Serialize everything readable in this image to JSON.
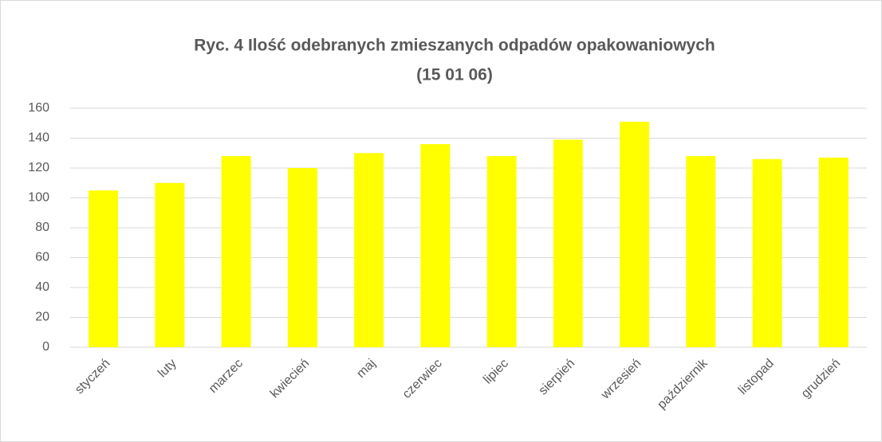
{
  "chart_data": {
    "type": "bar",
    "title": [
      "Ryc. 4 Ilość odebranych zmieszanych odpadów opakowaniowych",
      "(15 01 06)"
    ],
    "categories": [
      "styczeń",
      "luty",
      "marzec",
      "kwiecień",
      "maj",
      "czerwiec",
      "lipiec",
      "sierpień",
      "wrzesień",
      "październik",
      "listopad",
      "grudzień"
    ],
    "values": [
      105,
      110,
      128,
      120,
      130,
      136,
      128,
      139,
      151,
      128,
      126,
      127
    ],
    "color": "#ffff00",
    "ylim": [
      0,
      160
    ],
    "yticks": [
      0,
      20,
      40,
      60,
      80,
      100,
      120,
      140,
      160
    ],
    "grid": true
  }
}
